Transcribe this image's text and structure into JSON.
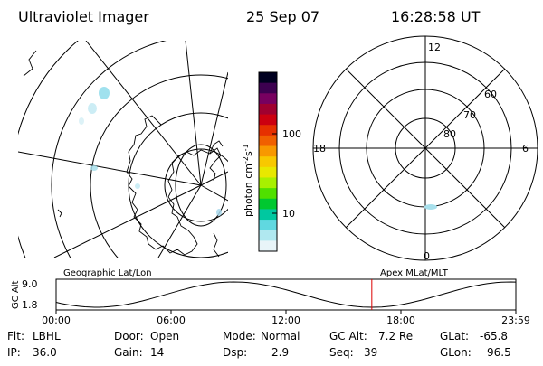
{
  "header": {
    "instrument": "Ultraviolet Imager",
    "date": "25 Sep 07",
    "time": "16:28:58 UT"
  },
  "colorbar": {
    "ticks": [
      "100",
      "10"
    ],
    "unit_prefix": "photon cm",
    "unit_exp1": "-2",
    "unit_mid": "s",
    "unit_exp2": "-1",
    "colors": [
      "#000020",
      "#3c0050",
      "#780060",
      "#a00030",
      "#cc0010",
      "#e63000",
      "#f06000",
      "#f89800",
      "#f8c800",
      "#e8e800",
      "#a8f000",
      "#50e000",
      "#00c830",
      "#00c8a0",
      "#60d8e0",
      "#b0e8f0",
      "#e8f4f8"
    ]
  },
  "left_map": {
    "label": "Geographic Lat/Lon"
  },
  "right_map": {
    "label": "Apex MLat/MLT",
    "lat_labels": [
      "80",
      "70",
      "60"
    ],
    "mlt_labels": {
      "top": "12",
      "left": "18",
      "right": "6",
      "bottom": "0"
    }
  },
  "timeline": {
    "axis_label": "GC Alt",
    "y_max": "9.0",
    "y_min": "1.8",
    "tick_labels": [
      "00:00",
      "06:00",
      "12:00",
      "18:00",
      "23:59"
    ],
    "current_time_hours": 16.48,
    "marker_color": "#dd0000"
  },
  "info": {
    "rows": [
      [
        {
          "k": "Flt:",
          "v": "LBHL"
        },
        {
          "k": "Door:",
          "v": "Open"
        },
        {
          "k": "Mode:",
          "v": "Normal"
        },
        {
          "k": "GC Alt:",
          "v": "7.2 Re"
        },
        {
          "k": "GLat:",
          "v": "-65.8"
        }
      ],
      [
        {
          "k": "IP:",
          "v": "36.0"
        },
        {
          "k": "Gain:",
          "v": "14"
        },
        {
          "k": "Dsp:",
          "v": "2.9"
        },
        {
          "k": "Seq:",
          "v": "39"
        },
        {
          "k": "GLon:",
          "v": "96.5"
        }
      ]
    ]
  }
}
